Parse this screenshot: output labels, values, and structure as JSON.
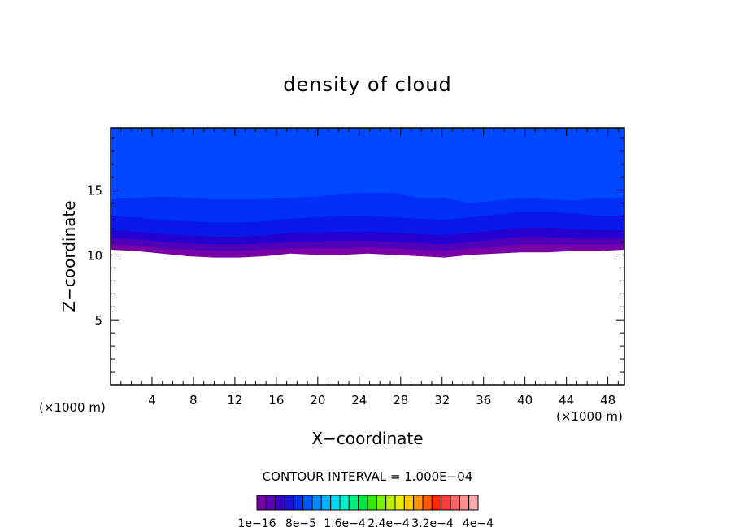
{
  "chart_data": {
    "type": "heatmap",
    "title": "density of cloud",
    "xlabel": "X−coordinate",
    "ylabel": "Z−coordinate",
    "x_unit_left": "(×1000 m)",
    "x_unit_right": "(×1000 m)",
    "xlim": [
      0,
      49.6
    ],
    "ylim": [
      0,
      19.8
    ],
    "xticks": [
      4,
      8,
      12,
      16,
      20,
      24,
      28,
      32,
      36,
      40,
      44,
      48
    ],
    "yticks": [
      5,
      10,
      15
    ],
    "contour_interval_text": "CONTOUR INTERVAL = 1.000E−04",
    "colorbar_labels": [
      "1e−16",
      "8e−5",
      "1.6e−4",
      "2.4e−4",
      "3.2e−4",
      "4e−4"
    ],
    "colorbar_colors": [
      "#7a00a8",
      "#5a00b4",
      "#3800c4",
      "#1a10d8",
      "#0030ec",
      "#0058ff",
      "#0088ff",
      "#00b4ff",
      "#00d8f0",
      "#00f0c8",
      "#00f080",
      "#00e840",
      "#30ec00",
      "#78f000",
      "#b8f000",
      "#ecec00",
      "#ffc800",
      "#ff9400",
      "#ff5a00",
      "#ff2800",
      "#ff3c3c",
      "#ff6464",
      "#ff8c8c",
      "#ffaaaa"
    ],
    "layers": [
      {
        "level": "1e-16",
        "color": "#7a00a8",
        "bottom_z": [
          10.4,
          10.3,
          10.1,
          9.9,
          9.8,
          9.8,
          9.9,
          10.1,
          10.0,
          10.0,
          10.1,
          10.0,
          9.9,
          9.8,
          10.0,
          10.1,
          10.2,
          10.2,
          10.3,
          10.3,
          10.4
        ]
      },
      {
        "level": "2e-5",
        "color": "#5000b8",
        "bottom_z": [
          10.8,
          10.7,
          10.5,
          10.4,
          10.3,
          10.3,
          10.4,
          10.5,
          10.5,
          10.5,
          10.6,
          10.5,
          10.4,
          10.3,
          10.5,
          10.6,
          10.8,
          10.8,
          10.8,
          10.8,
          10.8
        ]
      },
      {
        "level": "4e-5",
        "color": "#2400d0",
        "bottom_z": [
          11.3,
          11.2,
          11.0,
          10.9,
          10.8,
          10.8,
          10.9,
          11.0,
          11.0,
          11.1,
          11.1,
          11.0,
          10.9,
          10.8,
          11.0,
          11.2,
          11.4,
          11.4,
          11.3,
          11.3,
          11.3
        ]
      },
      {
        "level": "6e-5",
        "color": "#0818e8",
        "bottom_z": [
          11.9,
          11.8,
          11.6,
          11.5,
          11.4,
          11.4,
          11.5,
          11.7,
          11.7,
          11.8,
          11.8,
          11.7,
          11.6,
          11.5,
          11.7,
          11.9,
          12.1,
          12.1,
          12.0,
          11.9,
          11.9
        ]
      },
      {
        "level": "8e-5",
        "color": "#0030f5",
        "bottom_z": [
          13.0,
          12.9,
          12.7,
          12.6,
          12.5,
          12.5,
          12.6,
          12.8,
          12.9,
          13.0,
          13.0,
          12.9,
          12.8,
          12.7,
          12.9,
          13.1,
          13.3,
          13.3,
          13.2,
          13.0,
          13.0
        ]
      },
      {
        "level": "1e-4",
        "color": "#0048ff",
        "bottom_z": [
          14.3,
          14.4,
          14.5,
          14.4,
          14.3,
          14.3,
          14.3,
          14.4,
          14.5,
          14.7,
          14.8,
          14.8,
          14.4,
          14.4,
          14.0,
          14.2,
          14.4,
          14.3,
          14.2,
          14.4,
          14.4
        ]
      },
      {
        "level": "1.2e-4",
        "color": "#1e78ff",
        "bottom_z": [
          19.8,
          19.8,
          19.8,
          19.8,
          19.8,
          19.8,
          19.8,
          19.8,
          19.8,
          19.8,
          19.8,
          19.8,
          19.8,
          19.8,
          19.8,
          19.8,
          19.8,
          19.8,
          19.8,
          19.8,
          19.8
        ]
      }
    ],
    "grid": false,
    "legend": "colorbar-bottom"
  }
}
